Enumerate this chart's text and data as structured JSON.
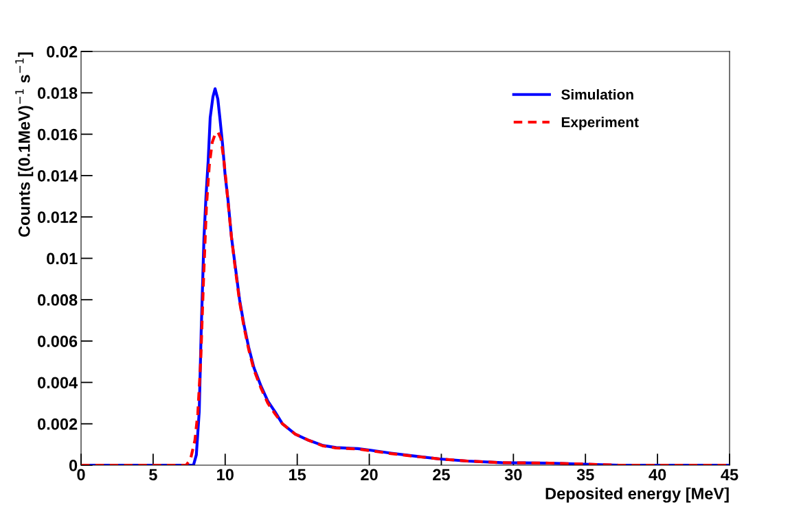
{
  "chart_data": {
    "type": "line",
    "xlabel": "Deposited energy [MeV]",
    "ylabel": "Counts [(0.1MeV)$^{−1}$ s$^{−1}$]",
    "xlim": [
      0,
      45
    ],
    "xticks": [
      0,
      5,
      10,
      15,
      20,
      25,
      30,
      35,
      40,
      45
    ],
    "ylim": [
      0,
      0.02
    ],
    "yticks": [
      0,
      0.002,
      0.004,
      0.006,
      0.008,
      0.01,
      0.012,
      0.014,
      0.016,
      0.018,
      0.02
    ],
    "legend": "top right",
    "grid": false,
    "series": [
      {
        "name": "Simulation",
        "color": "#0000ff",
        "line_style": "solid",
        "x": [
          0,
          7.8,
          8.0,
          8.2,
          8.34,
          8.53,
          8.67,
          8.82,
          8.96,
          9.15,
          9.3,
          9.49,
          9.63,
          9.82,
          10.0,
          10.2,
          10.44,
          10.72,
          11.0,
          11.3,
          11.63,
          12.0,
          12.5,
          12.96,
          13.44,
          13.97,
          14.87,
          15.8,
          16.8,
          17.7,
          19.2,
          20.1,
          21.5,
          23.0,
          24.9,
          26.8,
          29.2,
          32.5,
          37.3,
          45
        ],
        "values": [
          0,
          0,
          0.0005,
          0.0026,
          0.0066,
          0.011,
          0.013,
          0.0147,
          0.0168,
          0.0178,
          0.0182,
          0.0177,
          0.0168,
          0.0155,
          0.014,
          0.0128,
          0.011,
          0.0095,
          0.008,
          0.0068,
          0.0057,
          0.0047,
          0.0038,
          0.0031,
          0.0026,
          0.002,
          0.0015,
          0.0012,
          0.00095,
          0.00085,
          0.0008,
          0.00072,
          0.00058,
          0.00045,
          0.0003,
          0.0002,
          0.00012,
          0.0001,
          0,
          0
        ]
      },
      {
        "name": "Experiment",
        "color": "#ff0000",
        "line_style": "dashed",
        "x": [
          0,
          7.3,
          7.6,
          7.9,
          8.1,
          8.3,
          8.5,
          8.7,
          8.9,
          9.1,
          9.3,
          9.5,
          9.7,
          9.9,
          10.05,
          10.2,
          10.44,
          10.72,
          11.0,
          11.3,
          11.63,
          12.0,
          12.5,
          12.96,
          13.44,
          13.97,
          14.87,
          15.8,
          16.8,
          17.7,
          19.2,
          20.1,
          21.5,
          23.0,
          24.9,
          26.8,
          29.2,
          32.5,
          37.3,
          45
        ],
        "values": [
          0,
          0,
          0.0003,
          0.0012,
          0.0025,
          0.005,
          0.009,
          0.0125,
          0.0145,
          0.0156,
          0.016,
          0.0161,
          0.0158,
          0.0148,
          0.0138,
          0.0127,
          0.011,
          0.0094,
          0.0079,
          0.0067,
          0.0056,
          0.0046,
          0.0037,
          0.003,
          0.0025,
          0.002,
          0.0015,
          0.0012,
          0.00093,
          0.00083,
          0.00078,
          0.0007,
          0.00056,
          0.00044,
          0.0003,
          0.0002,
          0.00012,
          0.0001,
          0,
          0
        ]
      }
    ]
  }
}
